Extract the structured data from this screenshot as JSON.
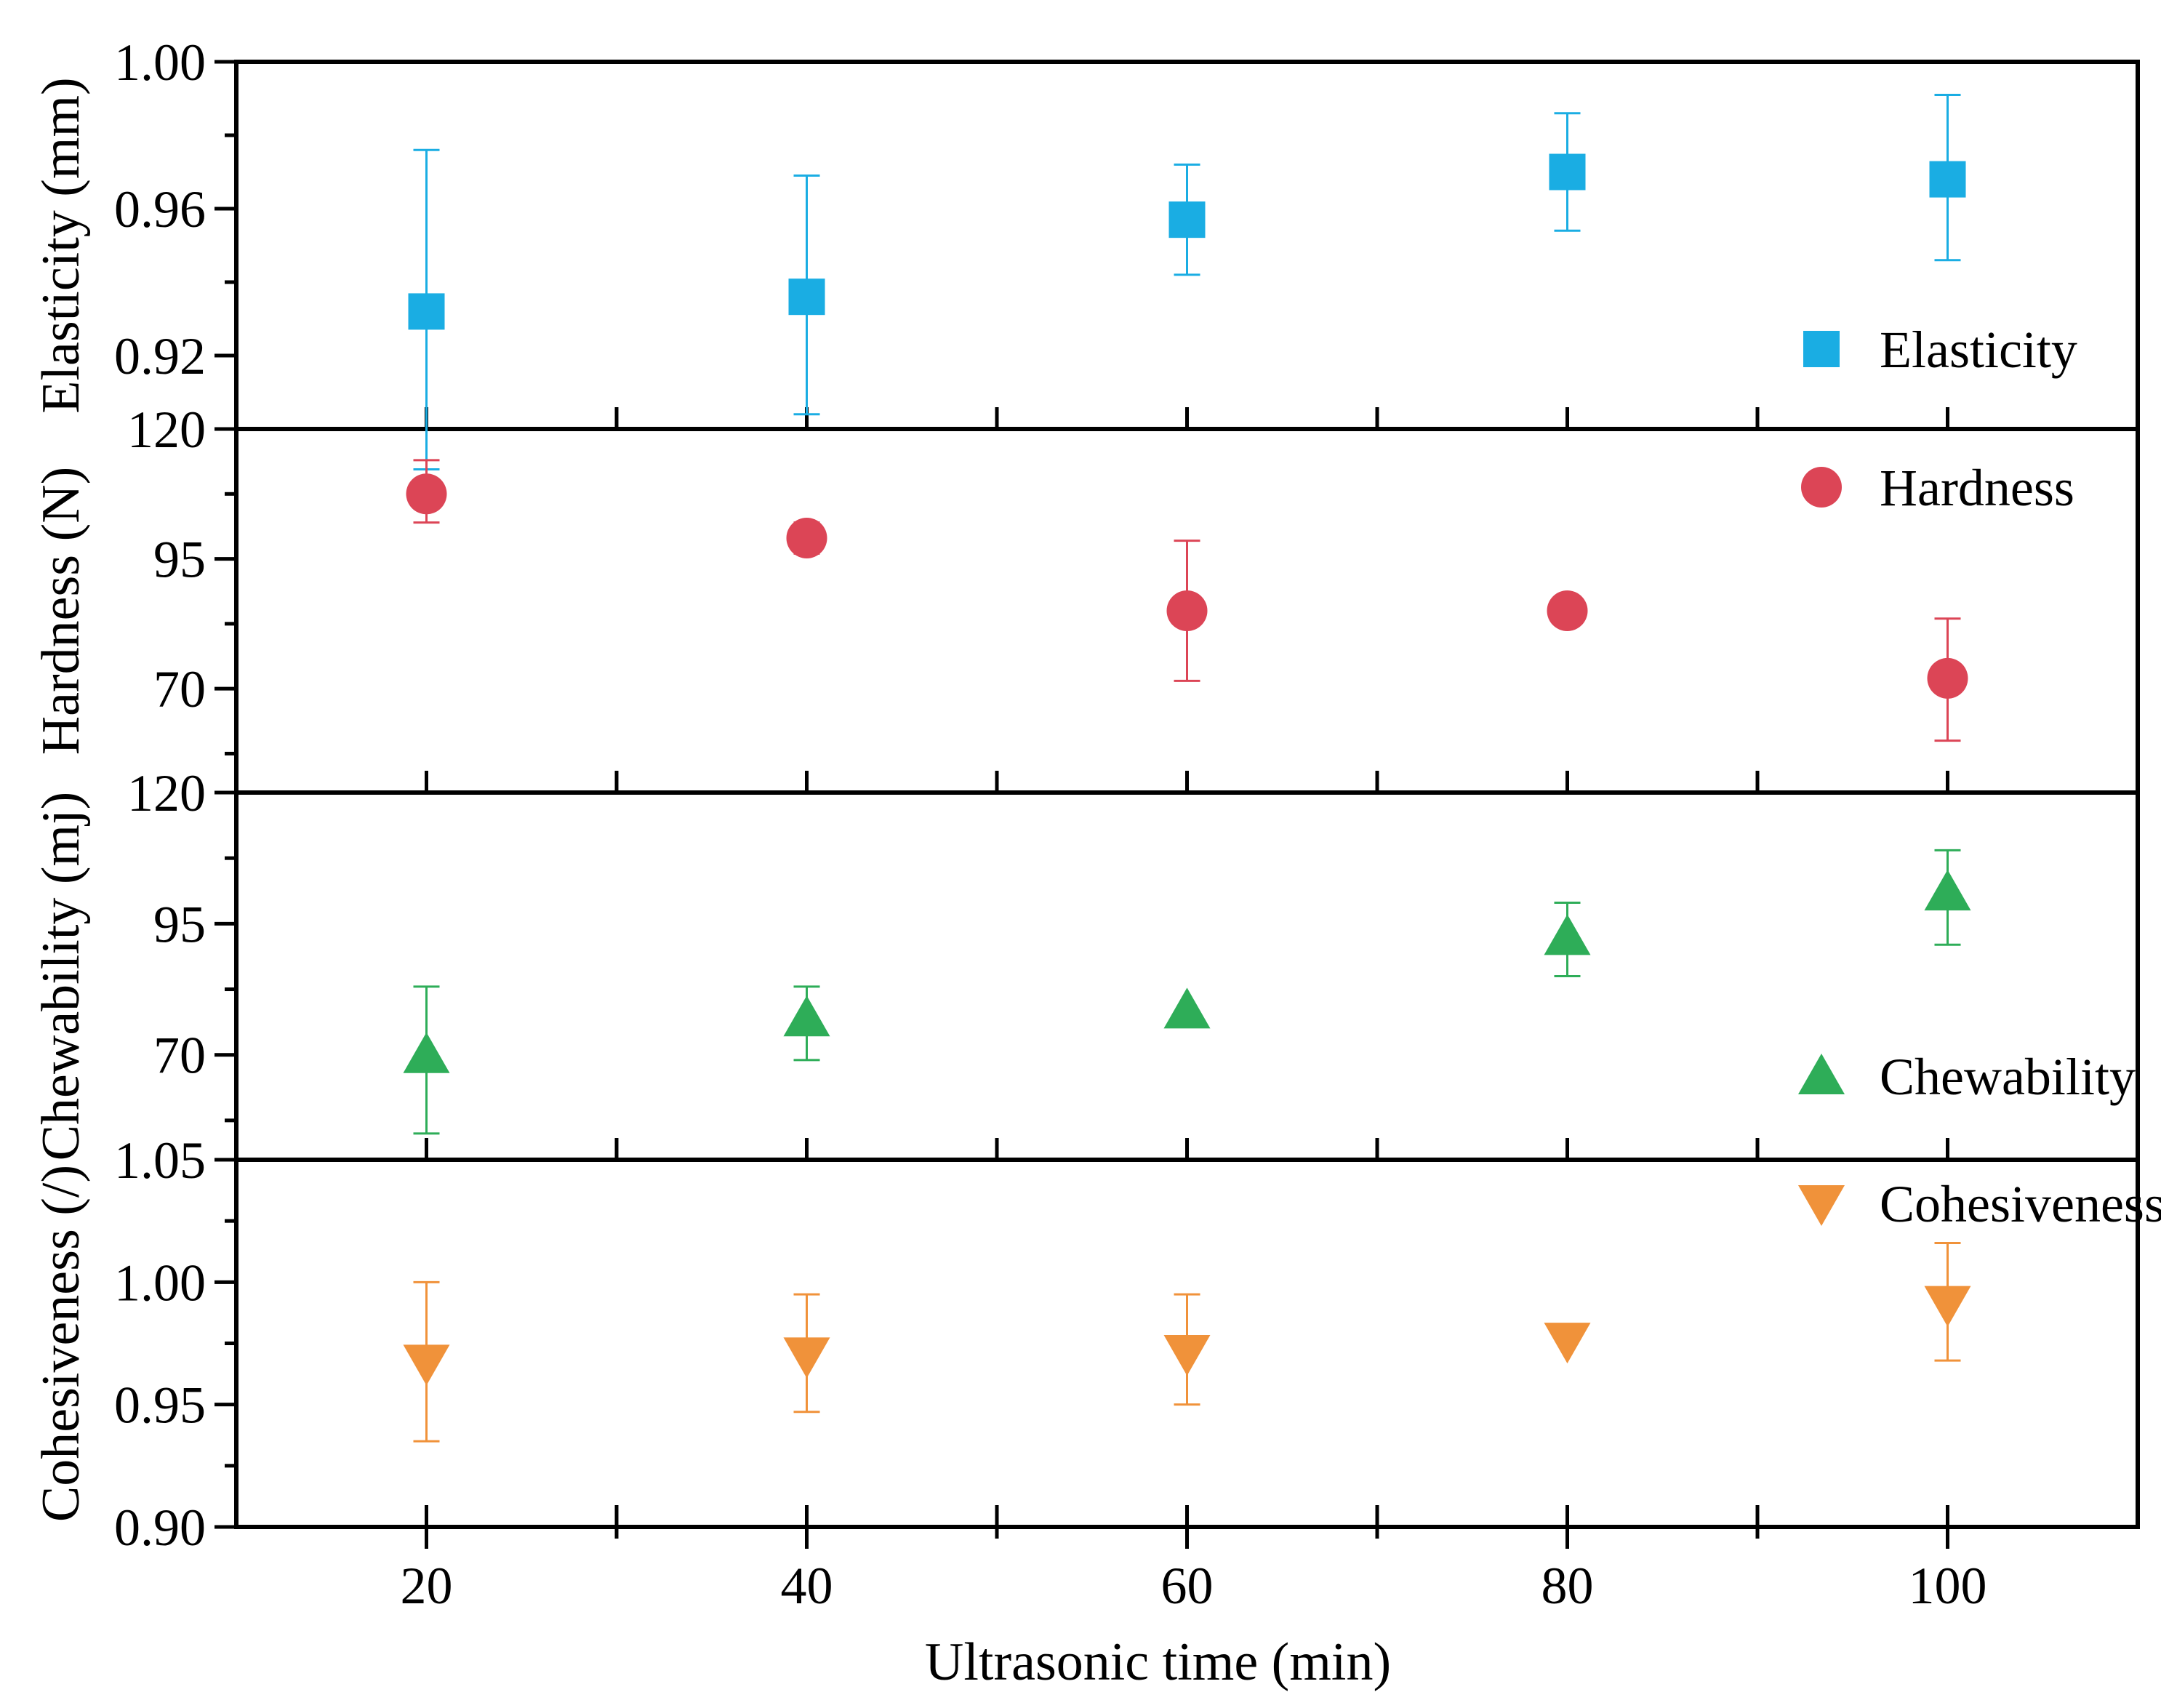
{
  "chart_data": {
    "type": "scatter",
    "layout": "stacked panels sharing x-axis",
    "xlabel": "Ultrasonic time (min)",
    "xlim": [
      10,
      110
    ],
    "x_ticks": [
      "20",
      "40",
      "60",
      "80",
      "100"
    ],
    "x_minor_ticks": [
      30,
      50,
      70,
      90
    ],
    "panels": [
      {
        "id": "elasticity",
        "ylabel": "Elasticity (mm)",
        "ylim": [
          0.9,
          1.0
        ],
        "y_ticks": [
          "0.92",
          "0.96",
          "1.00"
        ],
        "y_tick_values": [
          0.92,
          0.96,
          1.0
        ],
        "y_minor_ticks": [
          0.9,
          0.94,
          0.98
        ],
        "series": {
          "name": "Elasticity",
          "marker": "square",
          "color": "#1AADE3",
          "x": [
            20,
            40,
            60,
            80,
            100
          ],
          "y": [
            0.932,
            0.936,
            0.957,
            0.97,
            0.968
          ],
          "err_low": [
            0.889,
            0.904,
            0.942,
            0.954,
            0.946
          ],
          "err_high": [
            0.976,
            0.969,
            0.972,
            0.986,
            0.991
          ]
        },
        "legend_position": "bottom-right"
      },
      {
        "id": "hardness",
        "ylabel": "Hardness (N)",
        "ylim": [
          50,
          120
        ],
        "y_ticks": [
          "70",
          "95",
          "120"
        ],
        "y_tick_values": [
          70,
          95,
          120
        ],
        "y_minor_ticks": [
          57.5,
          82.5,
          107.5
        ],
        "series": {
          "name": "Hardness",
          "marker": "circle",
          "color": "#DC4556",
          "x": [
            20,
            40,
            60,
            80,
            100
          ],
          "y": [
            107.5,
            99,
            85,
            85,
            72
          ],
          "err_low": [
            102,
            96,
            71.5,
            85,
            60
          ],
          "err_high": [
            114,
            102,
            98.5,
            85,
            83.5
          ]
        },
        "legend_position": "top-right"
      },
      {
        "id": "chewability",
        "ylabel": "Chewability (mj)",
        "ylim": [
          50,
          120
        ],
        "y_ticks": [
          "70",
          "95",
          "120"
        ],
        "y_tick_values": [
          70,
          95,
          120
        ],
        "y_minor_ticks": [
          57.5,
          82.5,
          107.5
        ],
        "series": {
          "name": "Chewability",
          "marker": "triangle-up",
          "color": "#2EAD58",
          "x": [
            20,
            40,
            60,
            80,
            100
          ],
          "y": [
            70,
            77,
            78.5,
            92.5,
            101
          ],
          "err_low": [
            55,
            69,
            78.5,
            85,
            91
          ],
          "err_high": [
            83,
            83,
            78.5,
            99,
            109
          ]
        },
        "legend_position": "bottom-right"
      },
      {
        "id": "cohesiveness",
        "ylabel": "Cohesiveness (/)",
        "ylim": [
          0.9,
          1.05
        ],
        "y_ticks": [
          "0.90",
          "0.95",
          "1.00",
          "1.05"
        ],
        "y_tick_values": [
          0.9,
          0.95,
          1.0,
          1.05
        ],
        "y_minor_ticks": [
          0.925,
          0.975,
          1.025
        ],
        "series": {
          "name": "Cohesiveness",
          "marker": "triangle-down",
          "color": "#F0923A",
          "x": [
            20,
            40,
            60,
            80,
            100
          ],
          "y": [
            0.967,
            0.97,
            0.971,
            0.976,
            0.991
          ],
          "err_low": [
            0.935,
            0.947,
            0.95,
            0.976,
            0.968
          ],
          "err_high": [
            1.0,
            0.995,
            0.995,
            0.976,
            1.016
          ]
        },
        "legend_position": "top-right"
      }
    ]
  }
}
